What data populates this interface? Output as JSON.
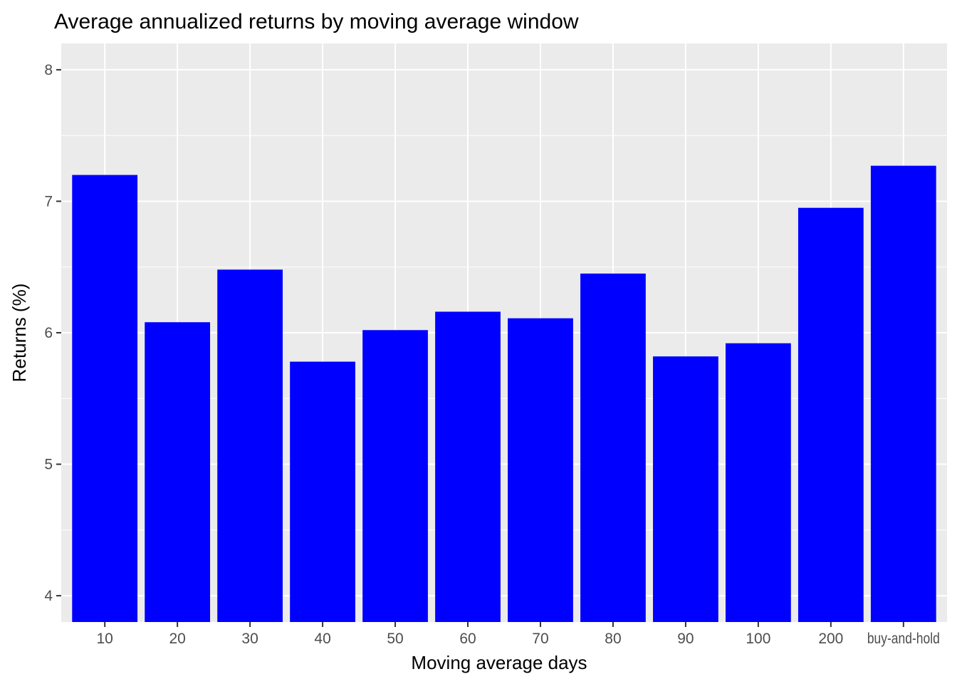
{
  "chart_data": {
    "type": "bar",
    "title": "Average annualized returns by moving average window",
    "xlabel": "Moving average days",
    "ylabel": "Returns (%)",
    "categories": [
      "10",
      "20",
      "30",
      "40",
      "50",
      "60",
      "70",
      "80",
      "90",
      "100",
      "200",
      "buy-and-hold"
    ],
    "values": [
      7.2,
      6.08,
      6.48,
      5.78,
      6.02,
      6.16,
      6.11,
      6.45,
      5.82,
      5.92,
      6.95,
      7.27
    ],
    "ylim": [
      3.8,
      8.2
    ],
    "yticks": [
      4,
      5,
      6,
      7,
      8
    ],
    "grid": true,
    "colors": {
      "bar": "#0000FF",
      "panel_background": "#EBEBEB",
      "grid": "#FFFFFF"
    }
  }
}
